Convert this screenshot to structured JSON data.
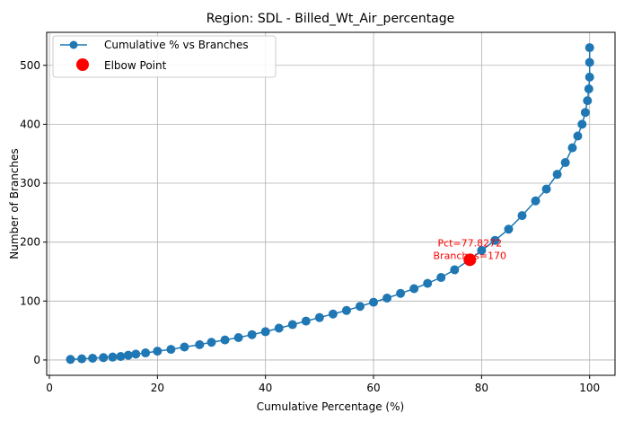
{
  "chart_data": {
    "type": "scatter",
    "title": "Region: SDL - Billed_Wt_Air_percentage",
    "xlabel": "Cumulative Percentage (%)",
    "ylabel": "Number of Branches",
    "xlim": [
      -0.5,
      104.7
    ],
    "ylim": [
      -26,
      556
    ],
    "xticks": [
      "0",
      "20",
      "40",
      "60",
      "80",
      "100"
    ],
    "yticks": [
      "0",
      "100",
      "200",
      "300",
      "400",
      "500"
    ],
    "grid": true,
    "legend_position": "top-left",
    "series": [
      {
        "name": "Cumulative % vs Branches",
        "color": "#1f77b4",
        "marker": "circle-line",
        "x": [
          3.9,
          6.0,
          8.0,
          10.0,
          11.7,
          13.2,
          14.6,
          16.0,
          17.8,
          20.0,
          22.5,
          25.0,
          27.8,
          30.0,
          32.5,
          35.0,
          37.5,
          40.0,
          42.5,
          45.0,
          47.5,
          50.0,
          52.5,
          55.0,
          57.5,
          60.0,
          62.5,
          65.0,
          67.5,
          70.0,
          72.5,
          75.0,
          77.8,
          80.0,
          82.5,
          85.0,
          87.5,
          90.0,
          92.0,
          94.0,
          95.5,
          96.8,
          97.8,
          98.6,
          99.2,
          99.6,
          99.85,
          100.0,
          100.0,
          100.0
        ],
        "y": [
          1,
          2,
          3,
          4,
          5,
          6,
          8,
          10,
          12,
          15,
          18,
          22,
          26,
          30,
          34,
          38,
          43,
          48,
          54,
          60,
          66,
          72,
          78,
          84,
          91,
          98,
          105,
          113,
          121,
          130,
          140,
          153,
          170,
          186,
          203,
          222,
          245,
          270,
          290,
          315,
          335,
          360,
          380,
          400,
          420,
          440,
          460,
          480,
          505,
          530
        ]
      }
    ],
    "elbow": {
      "name": "Elbow Point",
      "color": "#ff0000",
      "x": 77.8272,
      "y": 170,
      "label_line1": "Pct=77.8272",
      "label_line2": "Branches=170"
    }
  }
}
